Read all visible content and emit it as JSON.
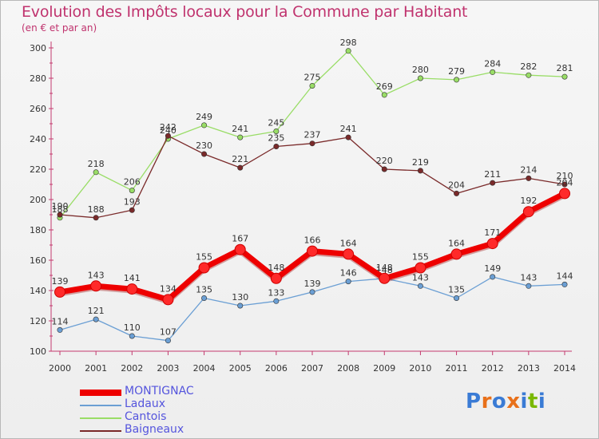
{
  "title": "Evolution des Impôts locaux pour la Commune par Habitant",
  "subtitle": "(en € et par an)",
  "logo": {
    "text": "Proxiti",
    "colors": [
      "#3a7bd5",
      "#e8701a",
      "#3a7bd5",
      "#e8701a",
      "#3a7bd5",
      "#7ab800",
      "#3a7bd5"
    ]
  },
  "chart_data": {
    "type": "line",
    "title": "Evolution des Impôts locaux pour la Commune par Habitant",
    "subtitle": "(en € et par an)",
    "xlabel": "",
    "ylabel": "",
    "x": [
      "2000",
      "2001",
      "2002",
      "2003",
      "2004",
      "2005",
      "2006",
      "2007",
      "2008",
      "2009",
      "2010",
      "2011",
      "2012",
      "2013",
      "2014"
    ],
    "ylim": [
      100,
      300
    ],
    "yticks": [
      "100",
      "120",
      "140",
      "160",
      "180",
      "200",
      "220",
      "240",
      "260",
      "280",
      "300"
    ],
    "grid": false,
    "legend_position": "bottom-left",
    "series": [
      {
        "name": "MONTIGNAC",
        "color": "#ee0000",
        "width": "thick",
        "values": [
          139,
          143,
          141,
          134,
          155,
          167,
          148,
          166,
          164,
          148,
          155,
          164,
          171,
          192,
          204
        ],
        "labels": [
          "139",
          "143",
          "141",
          "134",
          "155",
          "167",
          "148",
          "166",
          "164",
          "148",
          "155",
          "164",
          "171",
          "192",
          "204"
        ]
      },
      {
        "name": "Ladaux",
        "color": "#6b9fd4",
        "width": "thin",
        "values": [
          114,
          121,
          110,
          107,
          135,
          130,
          133,
          139,
          146,
          148,
          143,
          135,
          149,
          143,
          144
        ],
        "labels": [
          "114",
          "121",
          "110",
          "107",
          "135",
          "130",
          "133",
          "139",
          "146",
          "148",
          "143",
          "135",
          "149",
          "143",
          "144"
        ]
      },
      {
        "name": "Cantois",
        "color": "#99dd66",
        "width": "thin",
        "values": [
          188,
          218,
          206,
          240,
          249,
          241,
          245,
          275,
          298,
          269,
          280,
          279,
          284,
          282,
          281
        ],
        "labels": [
          "188",
          "218",
          "206",
          "240",
          "249",
          "241",
          "245",
          "275",
          "298",
          "269",
          "280",
          "279",
          "284",
          "282",
          "281"
        ]
      },
      {
        "name": "Baigneaux",
        "color": "#7a2a2a",
        "width": "thin",
        "values": [
          190,
          188,
          193,
          242,
          230,
          221,
          235,
          237,
          241,
          220,
          219,
          204,
          211,
          214,
          210
        ],
        "labels": [
          "190",
          "188",
          "193",
          "242",
          "230",
          "221",
          "235",
          "237",
          "241",
          "220",
          "219",
          "204",
          "211",
          "214",
          "210"
        ]
      }
    ]
  }
}
